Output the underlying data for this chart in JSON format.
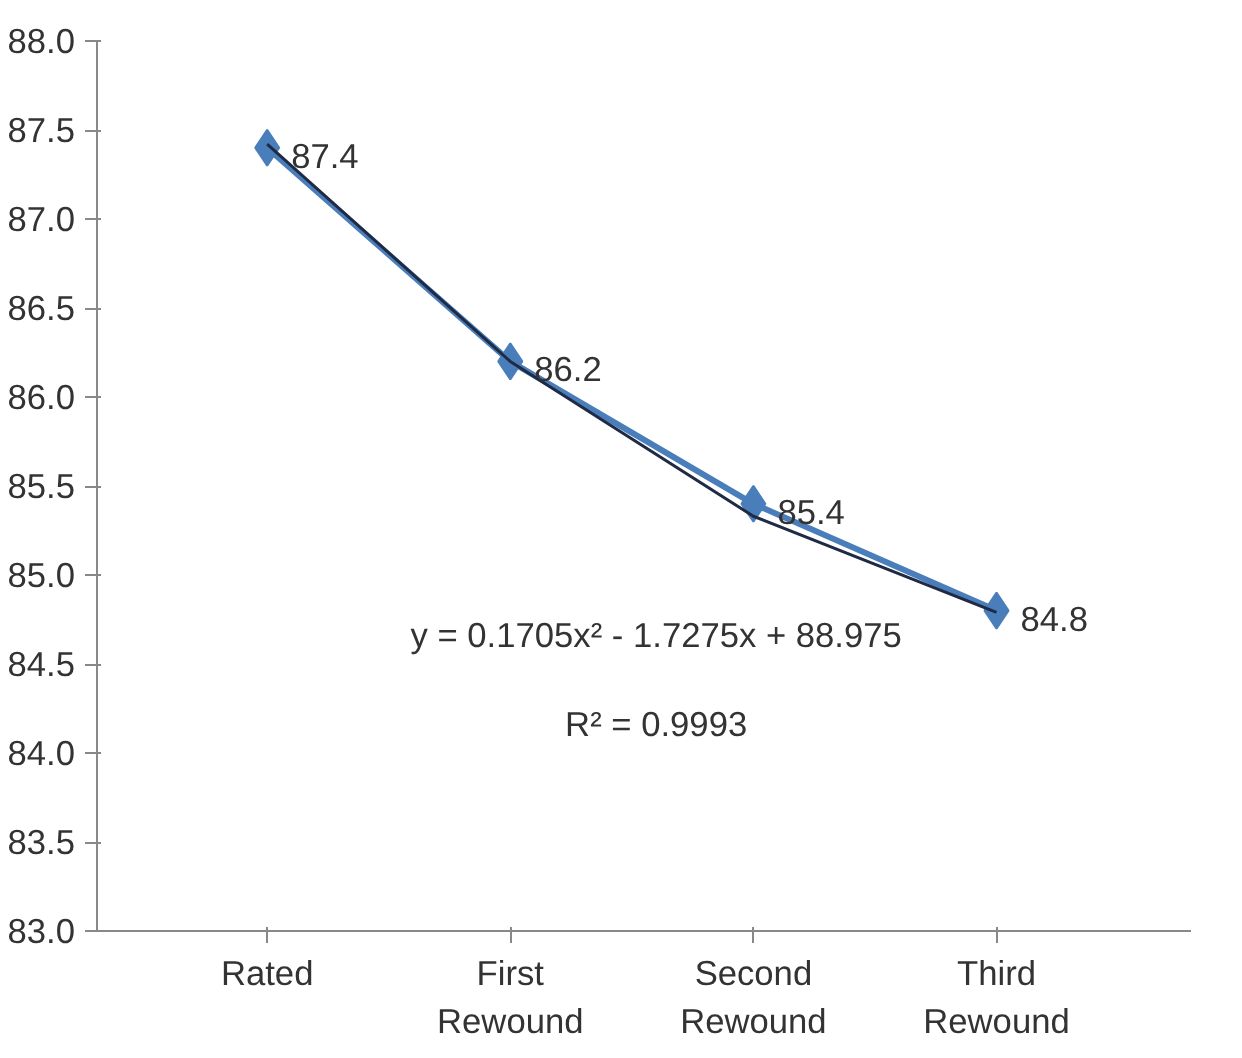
{
  "chart_data": {
    "type": "line",
    "categories": [
      "Rated",
      "First Rewound",
      "Second Rewound",
      "Third Rewound"
    ],
    "series": [
      {
        "color": "#4a7ebb",
        "values": [
          87.4,
          86.2,
          85.4,
          84.8
        ],
        "marker": "diamond",
        "value_labels": [
          "87.4",
          "86.2",
          "85.4",
          "84.8"
        ]
      },
      {
        "color": "#1f2a44",
        "values": [
          87.42,
          86.2,
          85.33,
          84.79
        ],
        "marker": "none"
      }
    ],
    "ylim": [
      83,
      88
    ],
    "yticks": [
      {
        "value": 83,
        "label": "83.0"
      },
      83.5,
      {
        "value": 84,
        "label": "84.0"
      },
      84.5,
      {
        "value": 85,
        "label": "85.0"
      },
      85.5,
      {
        "value": 86,
        "label": "86.0"
      },
      86.5,
      {
        "value": 87,
        "label": "87.0"
      },
      87.5,
      {
        "value": 88,
        "label": "88.0"
      }
    ],
    "annotations": [
      "y = 0.1705x² - 1.7275x + 88.975",
      "R² = 0.9993"
    ],
    "grid": false
  }
}
